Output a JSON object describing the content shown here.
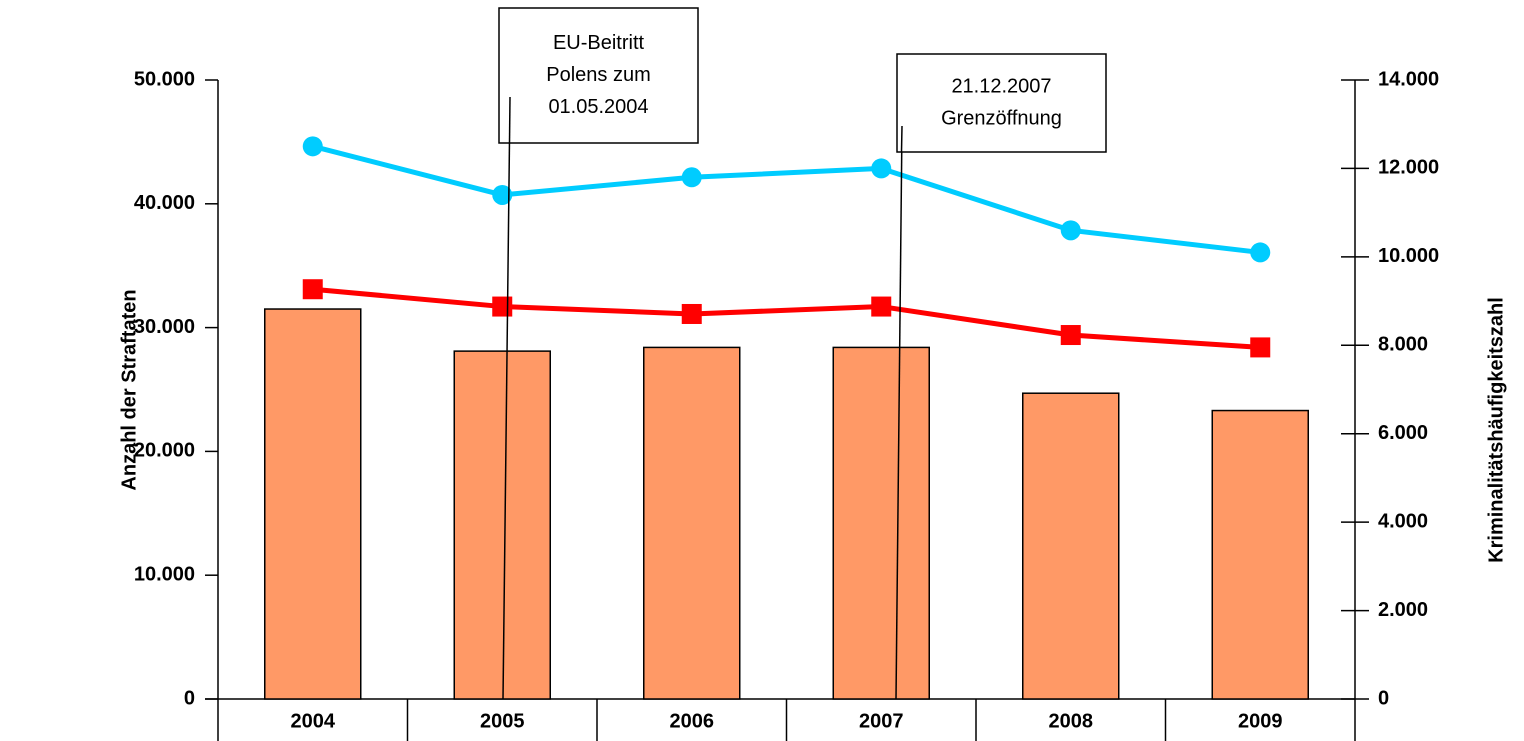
{
  "chart_data": {
    "type": "bar",
    "categories": [
      "2004",
      "2005",
      "2006",
      "2007",
      "2008",
      "2009"
    ],
    "series": [
      {
        "type": "bar",
        "color": "#ff9966",
        "values": [
          31500,
          28100,
          28400,
          28400,
          24700,
          23300
        ]
      },
      {
        "type": "line",
        "marker": "square",
        "color": "#ff0000",
        "values": [
          33100,
          31700,
          31100,
          31700,
          29400,
          28400
        ]
      },
      {
        "type": "line",
        "marker": "circle",
        "color": "#00ccff",
        "axis": "y2",
        "values": [
          12500,
          11400,
          11800,
          12000,
          10600,
          10100
        ]
      }
    ],
    "ylabel": "Anzahl der Straftaten",
    "y2label": "Kriminalitätshäufigkeitszahl",
    "ylim": [
      0,
      50000
    ],
    "yticks": [
      0,
      {
        "value": 10000,
        "label": "10.000"
      },
      {
        "value": 20000,
        "label": "20.000"
      },
      {
        "value": 30000,
        "label": "30.000"
      },
      {
        "value": 40000,
        "label": "40.000"
      },
      {
        "value": 50000,
        "label": "50.000"
      }
    ],
    "y2lim": [
      0,
      14000
    ],
    "y2ticks": [
      0,
      {
        "value": 2000,
        "label": "2.000"
      },
      {
        "value": 4000,
        "label": "4.000"
      },
      {
        "value": 6000,
        "label": "6.000"
      },
      {
        "value": 8000,
        "label": "8.000"
      },
      {
        "value": 10000,
        "label": "10.000"
      },
      {
        "value": 12000,
        "label": "12.000"
      },
      {
        "value": 14000,
        "label": "14.000"
      }
    ],
    "annotations": [
      {
        "lines": [
          "EU-Beitritt",
          "Polens zum",
          "01.05.2004"
        ]
      },
      {
        "lines": [
          "21.12.2007",
          "Grenzöffnung"
        ]
      }
    ]
  }
}
